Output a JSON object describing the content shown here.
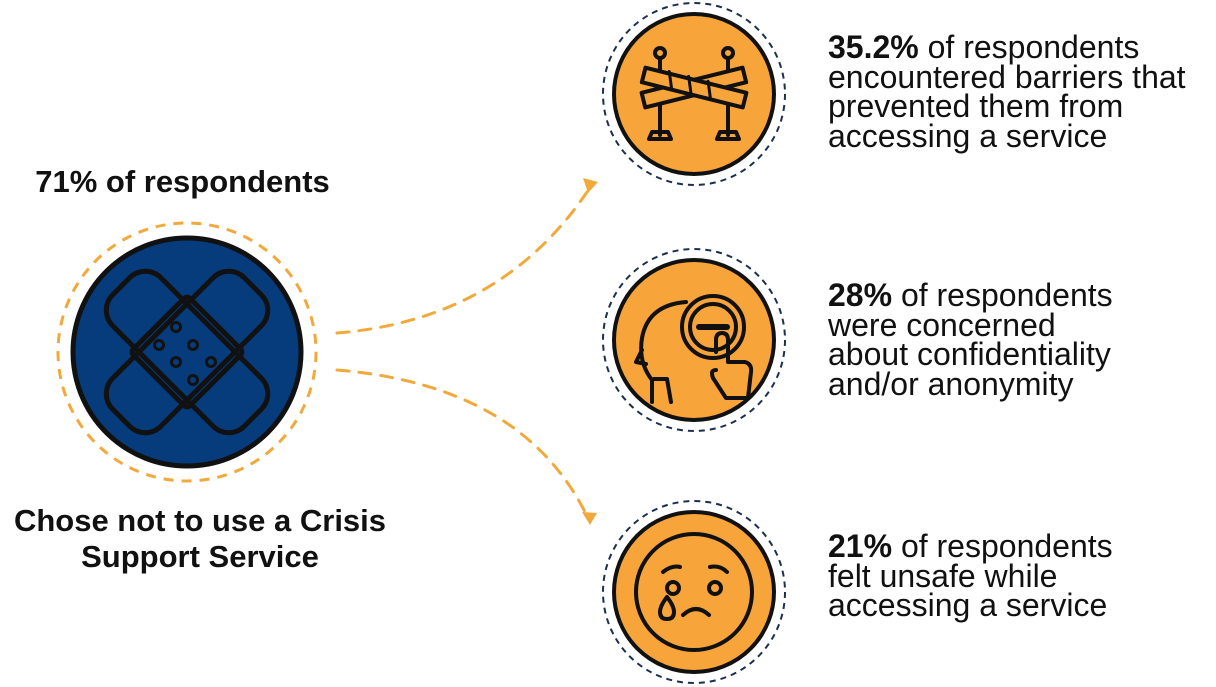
{
  "main": {
    "heading": "71% of respondents",
    "caption_lines": [
      "Chose not to use a Crisis",
      "Support Service"
    ],
    "icon": "bandage-icon"
  },
  "colors": {
    "navy": "#073c7c",
    "orange": "#f7a43b",
    "dash_orange": "#f2a93b",
    "dash_navy": "#1c2f4f",
    "ink": "#111111"
  },
  "stats": [
    {
      "percent": "35.2%",
      "lead": " of respondents",
      "lines": [
        "encountered barriers that",
        "prevented them from",
        "accessing a service"
      ],
      "icon": "barrier-icon"
    },
    {
      "percent": "28%",
      "lead": " of respondents",
      "lines": [
        "were concerned",
        "about confidentiality",
        "and/or anonymity"
      ],
      "icon": "privacy-icon"
    },
    {
      "percent": "21%",
      "lead": " of respondents",
      "lines": [
        "felt unsafe while",
        "accessing a service"
      ],
      "icon": "sad-face-icon"
    }
  ]
}
